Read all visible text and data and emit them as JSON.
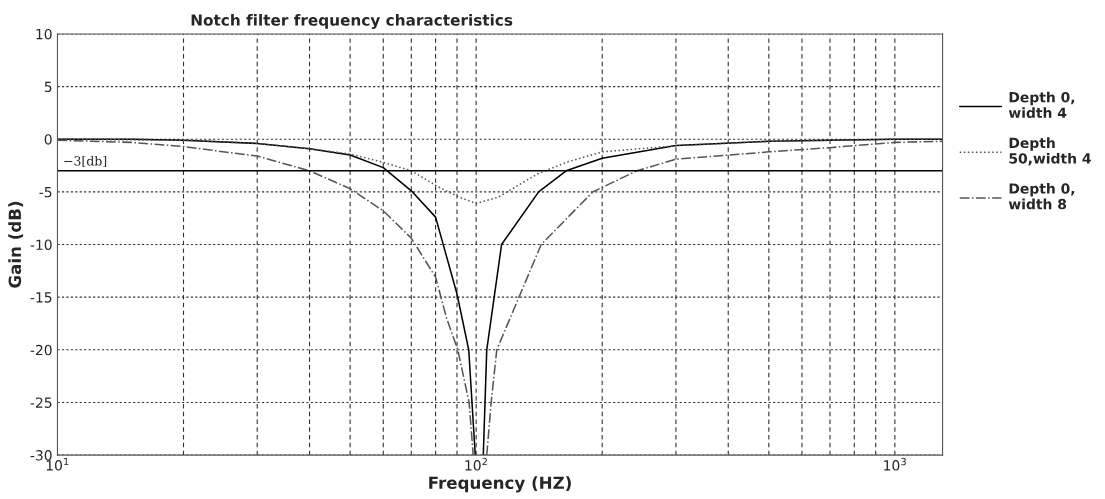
{
  "chart_data": {
    "type": "line",
    "title": "Notch filter frequency characteristics",
    "xlabel": "Frequency (HZ)",
    "ylabel": "Gain (dB)",
    "log": "x",
    "xlim": [
      10,
      1300
    ],
    "ylim": [
      -30,
      10
    ],
    "xticks": [
      {
        "value": 10,
        "label": "10$^{1}$"
      },
      {
        "value": 20,
        "label": null
      },
      {
        "value": 30,
        "label": null
      },
      {
        "value": 40,
        "label": null
      },
      {
        "value": 50,
        "label": null
      },
      {
        "value": 60,
        "label": null
      },
      {
        "value": 70,
        "label": null
      },
      {
        "value": 80,
        "label": null
      },
      {
        "value": 90,
        "label": null
      },
      {
        "value": 100,
        "label": "10$^{2}$"
      },
      {
        "value": 200,
        "label": null
      },
      {
        "value": 300,
        "label": null
      },
      {
        "value": 400,
        "label": null
      },
      {
        "value": 500,
        "label": null
      },
      {
        "value": 600,
        "label": null
      },
      {
        "value": 700,
        "label": null
      },
      {
        "value": 800,
        "label": null
      },
      {
        "value": 900,
        "label": null
      },
      {
        "value": 1000,
        "label": "10$^{3}$"
      }
    ],
    "yticks": [
      10,
      5,
      0,
      -5,
      -10,
      -15,
      -20,
      -25,
      -30
    ],
    "grid": true,
    "legend": "right",
    "marker": "none",
    "ref_lines": [
      {
        "axis": "y",
        "value": -3,
        "label": "−3[db]",
        "color": "#000000",
        "line_style": "solid"
      }
    ],
    "series": [
      {
        "name": "Depth 0,\nwidth 4",
        "color": "#000000",
        "line_style": "solid",
        "x": [
          10,
          15,
          20,
          30,
          40,
          50,
          60,
          70,
          80,
          90,
          96,
          99.5,
          101.5,
          104,
          106,
          115,
          141,
          164,
          200,
          300,
          500,
          700,
          1000,
          1300
        ],
        "values": [
          0,
          0,
          -0.1,
          -0.4,
          -0.9,
          -1.5,
          -2.7,
          -4.9,
          -7.4,
          -14.7,
          -20,
          -30,
          null,
          -30,
          -20,
          -10,
          -5,
          -3,
          -1.8,
          -0.6,
          -0.2,
          -0.1,
          0,
          0
        ]
      },
      {
        "name": "Depth\n50,width 4",
        "color": "#555555",
        "line_style": "dotted",
        "x": [
          10,
          20,
          30,
          40,
          50,
          60,
          70,
          81,
          91,
          100,
          113,
          140,
          164,
          200,
          305,
          500,
          1000,
          1300
        ],
        "values": [
          0,
          -0.1,
          -0.4,
          -0.9,
          -1.4,
          -2.2,
          -3,
          -4.5,
          -5.5,
          -6.1,
          -5.5,
          -3.3,
          -2.2,
          -1.2,
          -0.6,
          -0.2,
          0,
          0
        ]
      },
      {
        "name": "Depth 0,\nwidth 8",
        "color": "#555555",
        "line_style": "dashdot",
        "x": [
          10,
          15,
          20,
          30,
          40,
          50,
          60,
          70,
          80,
          85,
          90.4,
          96.2,
          98.4,
          101.5,
          106,
          108.6,
          112,
          143,
          190,
          242,
          300,
          500,
          700,
          1000,
          1300
        ],
        "values": [
          -0.1,
          -0.3,
          -0.7,
          -1.6,
          -3,
          -4.7,
          -6.8,
          -9.4,
          -13.1,
          -17,
          -20,
          -25,
          -30,
          null,
          -30,
          -25,
          -20,
          -10,
          -5,
          -3,
          -1.9,
          -1.2,
          -0.8,
          -0.3,
          -0.2
        ]
      }
    ]
  }
}
